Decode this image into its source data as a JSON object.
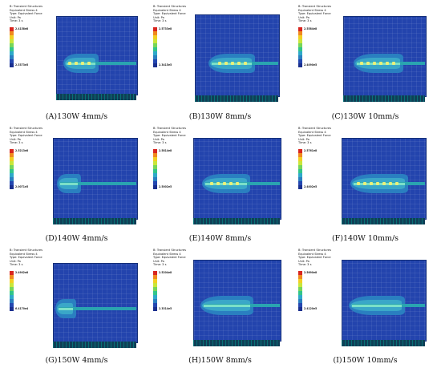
{
  "header": {
    "line1": "B: Transient Structures",
    "line2": "Equivalent Stress 4",
    "line3": "Type: Equivalent Force",
    "line4": "Unit: Pa",
    "line5": "Time: 3 s"
  },
  "legend_colors": [
    "#d8261f",
    "#f08a1e",
    "#f2cf22",
    "#c9e63a",
    "#76d65a",
    "#32c58a",
    "#2fa9c9",
    "#2a7fc0",
    "#2447b0",
    "#1a2f8e"
  ],
  "panels": [
    {
      "caption": "(A)130W  4mm/s",
      "legend_max": "2.4158e8",
      "legend_min": "2.5373e5"
    },
    {
      "caption": "(B)130W  8mm/s",
      "legend_max": "2.5733e8",
      "legend_min": "2.3415e5"
    },
    {
      "caption": "(C)130W  10mm/s",
      "legend_max": "2.5584e8",
      "legend_min": "2.4090e5"
    },
    {
      "caption": "(D)140W  4mm/s",
      "legend_max": "2.5213e8",
      "legend_min": "2.0071e5"
    },
    {
      "caption": "(E)140W  8mm/s",
      "legend_max": "2.5814e8",
      "legend_min": "2.5002e5"
    },
    {
      "caption": "(F)140W  10mm/s",
      "legend_max": "2.5761e8",
      "legend_min": "2.4002e5"
    },
    {
      "caption": "(G)150W  4mm/s",
      "legend_max": "2.4902e8",
      "legend_min": "6.4170e4"
    },
    {
      "caption": "(H)150W  8mm/s",
      "legend_max": "2.5204e8",
      "legend_min": "2.3314e5"
    },
    {
      "caption": "(I)150W  10mm/s",
      "legend_max": "2.5690e8",
      "legend_min": "2.4120e5"
    }
  ]
}
